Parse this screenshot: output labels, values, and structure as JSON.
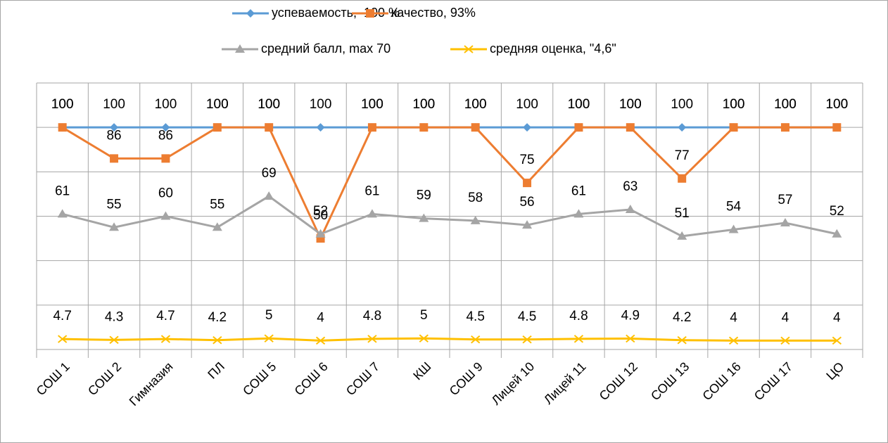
{
  "chart_data": {
    "type": "line",
    "categories": [
      "СОШ 1",
      "СОШ 2",
      "Гимназия",
      "ПЛ",
      "СОШ 5",
      "СОШ 6",
      "СОШ 7",
      "КШ",
      "СОШ 9",
      "Лицей 10",
      "Лицей 11",
      "СОШ 12",
      "СОШ 13",
      "СОШ 16",
      "СОШ 17",
      "ЦО"
    ],
    "series": [
      {
        "name": "успеваемость,  100 %",
        "color": "#5b9bd5",
        "marker": "diamond",
        "values": [
          100,
          100,
          100,
          100,
          100,
          100,
          100,
          100,
          100,
          100,
          100,
          100,
          100,
          100,
          100,
          100
        ]
      },
      {
        "name": "качество, 93%",
        "color": "#ed7d31",
        "marker": "square",
        "values": [
          100,
          86,
          86,
          100,
          100,
          50,
          100,
          100,
          100,
          75,
          100,
          100,
          77,
          100,
          100,
          100
        ]
      },
      {
        "name": "средний балл, max 70",
        "color": "#a5a5a5",
        "marker": "triangle",
        "values": [
          61,
          55,
          60,
          55,
          69,
          52,
          61,
          59,
          58,
          56,
          61,
          63,
          51,
          54,
          57,
          52
        ]
      },
      {
        "name": "средняя оценка, \"4,6\"",
        "color": "#ffc000",
        "marker": "x",
        "values": [
          4.7,
          4.3,
          4.7,
          4.2,
          5,
          4,
          4.8,
          5,
          4.5,
          4.5,
          4.8,
          4.9,
          4.2,
          4,
          4,
          4
        ]
      }
    ],
    "ylim": [
      0,
      120
    ],
    "yticks": [
      0,
      20,
      40,
      60,
      80,
      100,
      120
    ],
    "grid": true,
    "legend": "top"
  }
}
